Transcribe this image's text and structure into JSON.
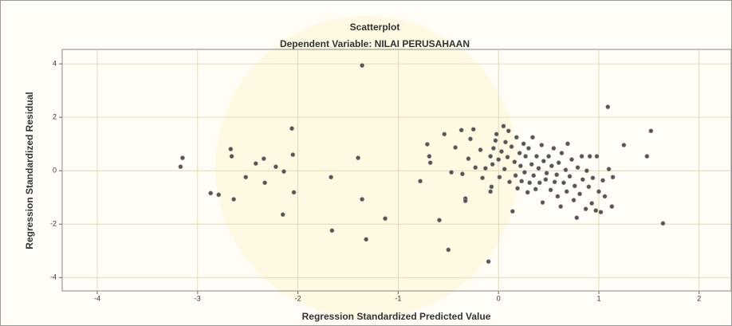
{
  "chart_data": {
    "type": "scatter",
    "title": "Scatterplot",
    "subtitle": "Dependent Variable: NILAI PERUSAHAAN",
    "x_label": "Regression Standardized Predicted Value",
    "y_label": "Regression Standardized Residual",
    "xlim": [
      -4.35,
      2.32
    ],
    "ylim": [
      -4.5,
      4.54
    ],
    "xticks": [
      -4,
      -3,
      -2,
      -1,
      0,
      1,
      2
    ],
    "yticks": [
      4,
      2,
      0,
      -2,
      -4
    ],
    "grid": true,
    "color": "#555555",
    "x": [
      -3.17,
      -3.15,
      -2.87,
      -2.79,
      -2.64,
      -2.67,
      -2.66,
      -2.52,
      -2.42,
      -2.34,
      -2.33,
      -2.22,
      -2.14,
      -2.15,
      -2.04,
      -2.06,
      -2.05,
      -1.67,
      -1.66,
      -1.4,
      -1.36,
      -1.36,
      -1.32,
      -1.13,
      -0.78,
      -0.71,
      -0.69,
      -0.68,
      -0.59,
      -0.54,
      -0.5,
      -0.47,
      -0.43,
      -0.36,
      -0.33,
      -0.33,
      -0.3,
      -0.28,
      -0.25,
      -0.23,
      -0.18,
      -0.16,
      -0.13,
      -0.1,
      -0.08,
      -0.07,
      -0.06,
      -0.03,
      -0.02,
      0,
      0.01,
      0.03,
      0.05,
      0.06,
      0.07,
      0.09,
      0.1,
      0.11,
      0.13,
      0.14,
      0.16,
      0.17,
      0.18,
      0.19,
      0.21,
      0.22,
      0.23,
      0.25,
      0.26,
      0.27,
      0.29,
      0.3,
      0.31,
      0.33,
      0.34,
      0.35,
      0.37,
      0.38,
      0.4,
      0.41,
      0.43,
      0.44,
      0.45,
      0.47,
      0.48,
      0.5,
      0.52,
      0.53,
      0.55,
      0.56,
      0.58,
      0.59,
      0.6,
      0.62,
      0.63,
      0.65,
      0.67,
      0.68,
      0.69,
      0.71,
      0.73,
      0.75,
      0.76,
      0.78,
      0.79,
      0.81,
      0.83,
      0.84,
      0.87,
      0.88,
      0.9,
      0.91,
      0.93,
      0.94,
      0.97,
      0.98,
      1,
      1.02,
      1.04,
      1.06,
      1.09,
      1.1,
      1.13,
      1.14,
      1.25,
      1.48,
      1.52,
      1.64,
      -0.37,
      -0.08,
      -0.05
    ],
    "y": [
      0.15,
      0.48,
      -0.84,
      -0.9,
      -1.07,
      0.81,
      0.54,
      -0.24,
      0.27,
      0.45,
      -0.45,
      0.15,
      -0.03,
      -1.64,
      -0.81,
      1.58,
      0.6,
      -0.24,
      -2.24,
      0.48,
      3.94,
      -1.07,
      -2.57,
      -1.79,
      -0.39,
      0.99,
      0.54,
      0.3,
      -1.85,
      1.37,
      -2.96,
      -0.06,
      0.87,
      -0.12,
      -1.04,
      -1.13,
      0.45,
      1.19,
      1.55,
      0.12,
      0.78,
      -0.27,
      0.09,
      -3.4,
      -0.78,
      -0.6,
      0.24,
      1.13,
      1.37,
      0.42,
      -0.24,
      0.72,
      1.67,
      0.06,
      1.07,
      0.51,
      1.49,
      -0.42,
      0.9,
      -1.52,
      0.33,
      -0.18,
      1.25,
      -0.66,
      0.66,
      0.18,
      -0.39,
      1.01,
      -0.06,
      0.54,
      -0.81,
      0.84,
      -0.45,
      0.24,
      1.25,
      -0.18,
      -0.69,
      0.54,
      0.09,
      -0.45,
      0.96,
      -1.19,
      0.36,
      -0.33,
      -0.09,
      0.54,
      -0.72,
      0.18,
      0.84,
      -0.42,
      -0.15,
      -0.96,
      0.3,
      -1.34,
      0.66,
      -0.45,
      0.03,
      -0.78,
      1.01,
      -0.21,
      0.42,
      -1.1,
      -0.57,
      -1.76,
      0.12,
      -0.87,
      0.54,
      -0.33,
      -1.43,
      0,
      -0.6,
      0.54,
      -1.22,
      -0.27,
      -1.49,
      0.54,
      -0.78,
      -1.55,
      -0.36,
      -0.96,
      2.39,
      0.06,
      -1.34,
      -0.24,
      0.96,
      0.54,
      1.49,
      -1.97,
      1.52,
      0.54,
      0.84
    ]
  }
}
